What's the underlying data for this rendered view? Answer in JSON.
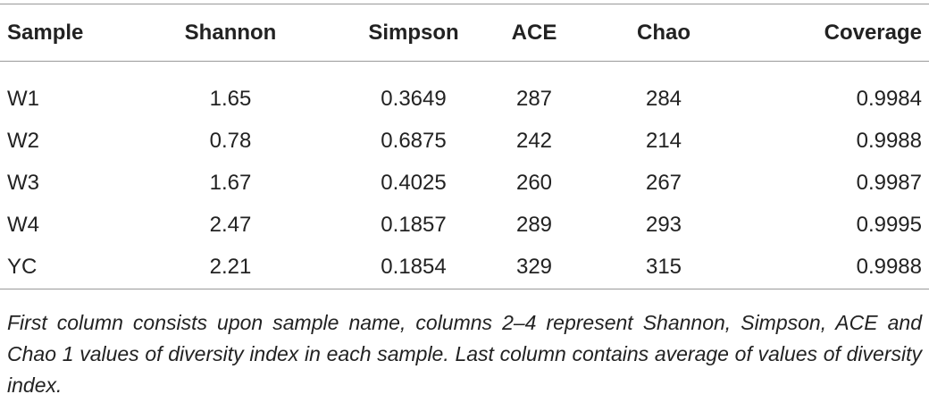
{
  "table": {
    "header": [
      "Sample",
      "Shannon",
      "Simpson",
      "ACE",
      "Chao",
      "Coverage"
    ],
    "rows": [
      [
        "W1",
        "1.65",
        "0.3649",
        "287",
        "284",
        "0.9984"
      ],
      [
        "W2",
        "0.78",
        "0.6875",
        "242",
        "214",
        "0.9988"
      ],
      [
        "W3",
        "1.67",
        "0.4025",
        "260",
        "267",
        "0.9987"
      ],
      [
        "W4",
        "2.47",
        "0.1857",
        "289",
        "293",
        "0.9995"
      ],
      [
        "YC",
        "2.21",
        "0.1854",
        "329",
        "315",
        "0.9988"
      ]
    ],
    "caption": "First column consists upon sample name, columns 2–4 represent Shannon, Simpson, ACE and Chao 1 values of diversity index in each sample. Last column contains average of values of diversity index."
  }
}
